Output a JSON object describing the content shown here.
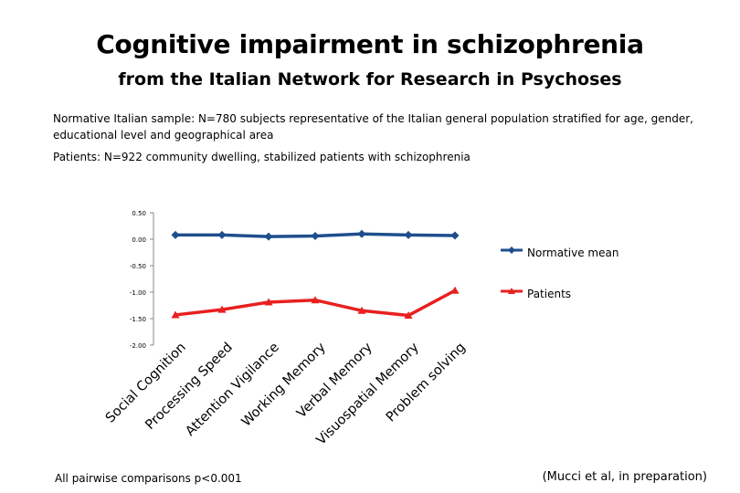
{
  "header": {
    "title": "Cognitive impairment in schizophrenia",
    "subtitle": "from the Italian Network for Research in Psychoses"
  },
  "notes": {
    "sample": "Normative Italian sample: N=780 subjects representative of the Italian general population stratified for age, gender, educational level and geographical area",
    "patients": "Patients: N=922 community dwelling, stabilized patients with schizophrenia"
  },
  "footer": {
    "left": "All pairwise comparisons p<0.001",
    "right": "(Mucci et al, in preparation)"
  },
  "chart_data": {
    "type": "line",
    "categories": [
      "Social Cognition",
      "Processing Speed",
      "Attention Vigilance",
      "Working Memory",
      "Verbal Memory",
      "Visuospatial Memory",
      "Problem solving"
    ],
    "series": [
      {
        "name": "Normative mean",
        "color": "#1f4e8c",
        "marker": "diamond",
        "values": [
          0.08,
          0.08,
          0.05,
          0.06,
          0.1,
          0.08,
          0.07
        ]
      },
      {
        "name": "Patients",
        "color": "#e8201f",
        "marker": "triangle",
        "values": [
          -1.43,
          -1.33,
          -1.19,
          -1.15,
          -1.35,
          -1.44,
          -0.97
        ]
      }
    ],
    "yticks": [
      "0.50",
      "0.00",
      "-0.50",
      "-1.00",
      "-1.50",
      "-2.00"
    ],
    "ylim": [
      -2.0,
      0.5
    ],
    "legend": "right"
  }
}
